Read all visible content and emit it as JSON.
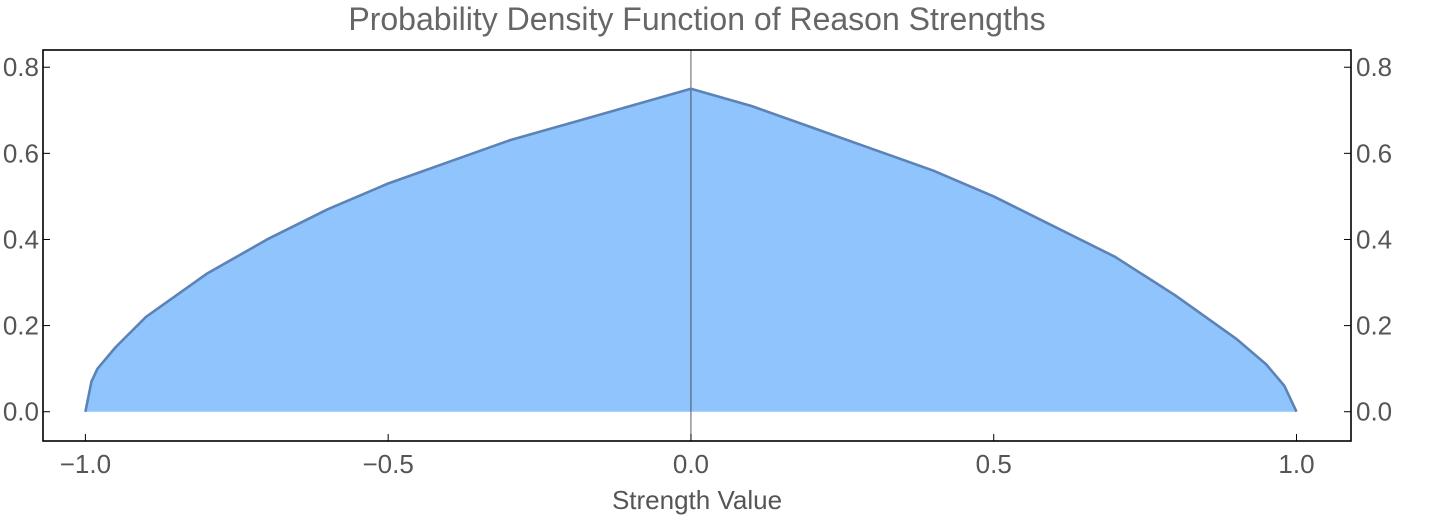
{
  "chart_data": {
    "type": "area",
    "title": "Probability Density Function of Reason Strengths",
    "xlabel": "Strength Value",
    "ylabel": "",
    "xlim": [
      -1.07,
      1.09
    ],
    "ylim": [
      -0.068,
      0.84
    ],
    "x_ticks": [
      -1.0,
      -0.5,
      0.0,
      0.5,
      1.0
    ],
    "x_tick_labels": [
      "−1.0",
      "−0.5",
      "0.0",
      "0.5",
      "1.0"
    ],
    "y_ticks": [
      0.0,
      0.2,
      0.4,
      0.6,
      0.8
    ],
    "y_tick_labels": [
      "0.0",
      "0.2",
      "0.4",
      "0.6",
      "0.8"
    ],
    "right_y_tick_labels": [
      "0.0",
      "0.2",
      "0.4",
      "0.6",
      "0.8"
    ],
    "grid": false,
    "vertical_reference_line_x": 0.0,
    "series": [
      {
        "x": [
          -1.0,
          -0.99,
          -0.98,
          -0.95,
          -0.9,
          -0.8,
          -0.7,
          -0.6,
          -0.5,
          -0.4,
          -0.3,
          -0.2,
          -0.1,
          0.0,
          0.1,
          0.2,
          0.3,
          0.4,
          0.5,
          0.6,
          0.7,
          0.8,
          0.9,
          0.95,
          0.98,
          0.99,
          1.0
        ],
        "y": [
          0.0,
          0.07,
          0.1,
          0.15,
          0.22,
          0.32,
          0.4,
          0.47,
          0.53,
          0.58,
          0.63,
          0.67,
          0.71,
          0.75,
          0.71,
          0.66,
          0.61,
          0.56,
          0.5,
          0.43,
          0.36,
          0.27,
          0.17,
          0.11,
          0.06,
          0.03,
          0.0
        ],
        "fill_color": "#8fc5fc",
        "line_color": "#5d82b5"
      }
    ],
    "frame_color": "#000000"
  }
}
